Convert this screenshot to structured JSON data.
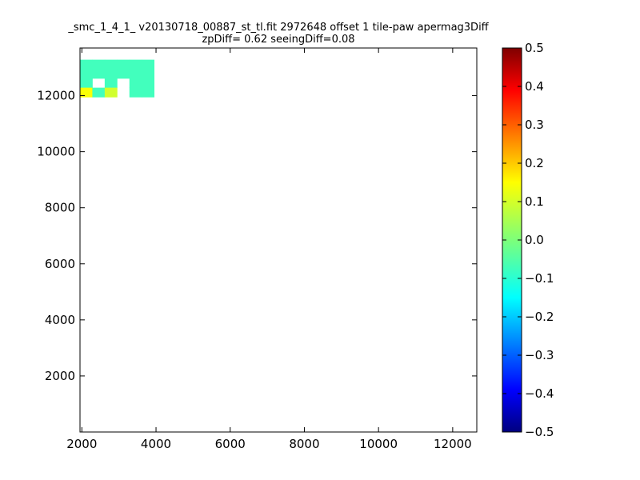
{
  "chart_data": {
    "type": "heatmap",
    "title": "_smc_1_4_1_ v20130718_00887_st_tl.fit 2972648 offset 1 tile-paw apermag3Diff",
    "subtitle": "zpDiff= 0.62 seeingDiff=0.08",
    "xlabel": "",
    "ylabel": "",
    "xlim": [
      1950,
      12650
    ],
    "ylim": [
      0,
      13700
    ],
    "x_ticks": [
      2000,
      4000,
      6000,
      8000,
      10000,
      12000
    ],
    "y_ticks": [
      2000,
      4000,
      6000,
      8000,
      10000,
      12000
    ],
    "x_tick_labels": [
      "2000",
      "4000",
      "6000",
      "8000",
      "10000",
      "12000"
    ],
    "y_tick_labels": [
      "2000",
      "4000",
      "6000",
      "8000",
      "10000",
      "12000"
    ],
    "colormap": "jet",
    "colorbar": {
      "min": -0.5,
      "max": 0.5,
      "ticks": [
        0.5,
        0.4,
        0.3,
        0.2,
        0.1,
        0.0,
        -0.1,
        -0.2,
        -0.3,
        -0.4,
        -0.5
      ],
      "tick_labels": [
        "0.5",
        "0.4",
        "0.3",
        "0.2",
        "0.1",
        "0.0",
        "−0.1",
        "−0.2",
        "−0.3",
        "−0.4",
        "−0.5"
      ]
    },
    "cell_size": 333,
    "grid": false,
    "cells": [
      [
        1950,
        0,
        12950,
        -0.06
      ],
      [
        2283,
        0,
        12950,
        -0.06
      ],
      [
        2616,
        0,
        12950,
        -0.06
      ],
      [
        2949,
        0,
        12950,
        -0.06
      ],
      [
        3282,
        0,
        12950,
        -0.06
      ],
      [
        3615,
        0,
        12950,
        -0.06
      ],
      [
        1950,
        0,
        12617,
        -0.06
      ],
      [
        2283,
        0,
        12617,
        -0.06
      ],
      [
        2616,
        0,
        12617,
        -0.06
      ],
      [
        2949,
        0,
        12617,
        -0.06
      ],
      [
        3282,
        0,
        12617,
        -0.06
      ],
      [
        3615,
        0,
        12617,
        -0.06
      ],
      [
        1950,
        0,
        12284,
        -0.06
      ],
      [
        2616,
        0,
        12284,
        -0.06
      ],
      [
        3282,
        0,
        12284,
        -0.06
      ],
      [
        3615,
        0,
        12284,
        -0.06
      ],
      [
        1950,
        0,
        11951,
        0.12
      ],
      [
        2283,
        0,
        11951,
        -0.06
      ],
      [
        2616,
        0,
        11951,
        0.08
      ],
      [
        3282,
        0,
        11951,
        -0.06
      ],
      [
        3615,
        0,
        11951,
        -0.06
      ]
    ]
  }
}
